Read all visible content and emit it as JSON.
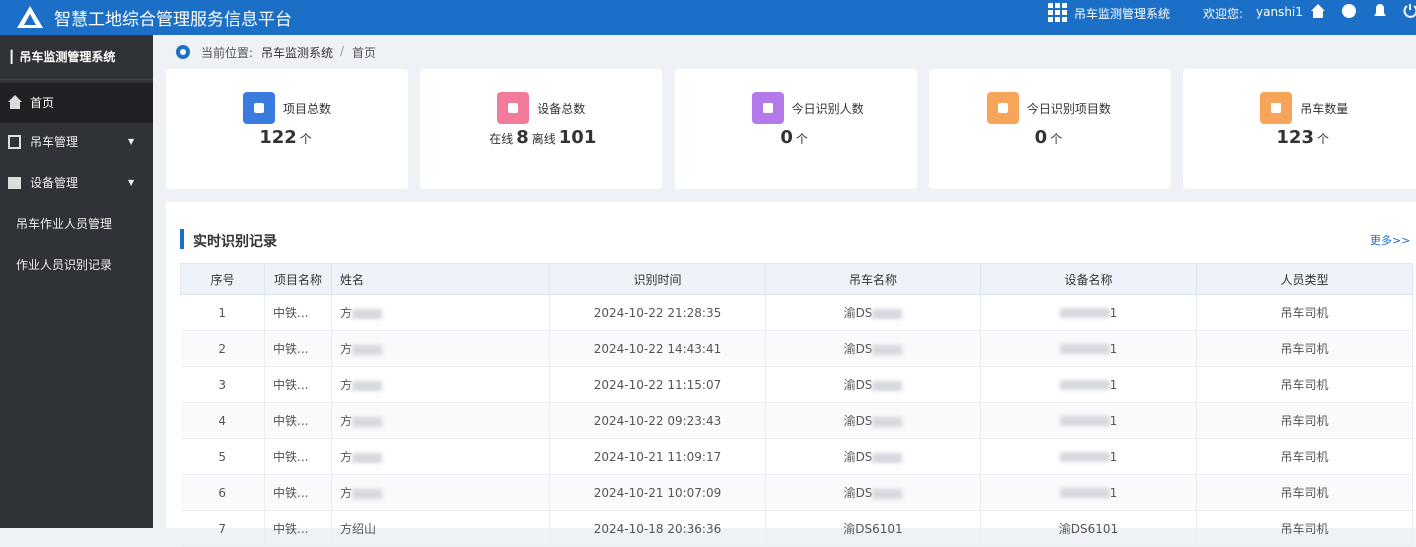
{
  "header": {
    "title": "智慧工地综合管理服务信息平台",
    "system": "吊车监测管理系统",
    "welcome": "欢迎您:",
    "user": "yanshi1"
  },
  "sidebar": {
    "title": "吊车监测管理系统",
    "menu": [
      "首页",
      "吊车管理",
      "设备管理",
      "吊车作业人员管理",
      "作业人员识别记录"
    ]
  },
  "breadcrumb": {
    "label": "当前位置:",
    "path": "吊车监测系统",
    "separator": "/",
    "current": "首页"
  },
  "stats": [
    {
      "label": "项目总数",
      "value": 122,
      "unit": "个"
    },
    {
      "label": "设备总数",
      "online_label": "在线",
      "online": 8,
      "offline_label": "离线",
      "offline": 101
    },
    {
      "label": "今日识别人数",
      "value": 0,
      "unit": "个"
    },
    {
      "label": "今日识别项目数",
      "value": 0,
      "unit": "个"
    },
    {
      "label": "吊车数量",
      "value": 123,
      "unit": "个"
    }
  ],
  "panel": {
    "title": "实时识别记录",
    "more": "更多>>"
  },
  "table": {
    "columns": [
      "序号",
      "项目名称",
      "姓名",
      "识别时间",
      "吊车名称",
      "设备名称",
      "人员类型"
    ],
    "rows": [
      [
        "1",
        "中铁...",
        "方",
        "2024-10-22 21:28:35",
        "渝DS",
        "1",
        "吊车司机"
      ],
      [
        "2",
        "中铁...",
        "方",
        "2024-10-22 14:43:41",
        "渝DS",
        "1",
        "吊车司机"
      ],
      [
        "3",
        "中铁...",
        "方",
        "2024-10-22 11:15:07",
        "渝DS",
        "1",
        "吊车司机"
      ],
      [
        "4",
        "中铁...",
        "方",
        "2024-10-22 09:23:43",
        "渝DS",
        "1",
        "吊车司机"
      ],
      [
        "5",
        "中铁...",
        "方",
        "2024-10-21 11:09:17",
        "渝DS",
        "1",
        "吊车司机"
      ],
      [
        "6",
        "中铁...",
        "方",
        "2024-10-21 10:07:09",
        "渝DS",
        "1",
        "吊车司机"
      ],
      [
        "7",
        "中铁...",
        "方绍山",
        "2024-10-18 20:36:36",
        "渝DS6101",
        "渝DS6101",
        "吊车司机"
      ]
    ]
  }
}
